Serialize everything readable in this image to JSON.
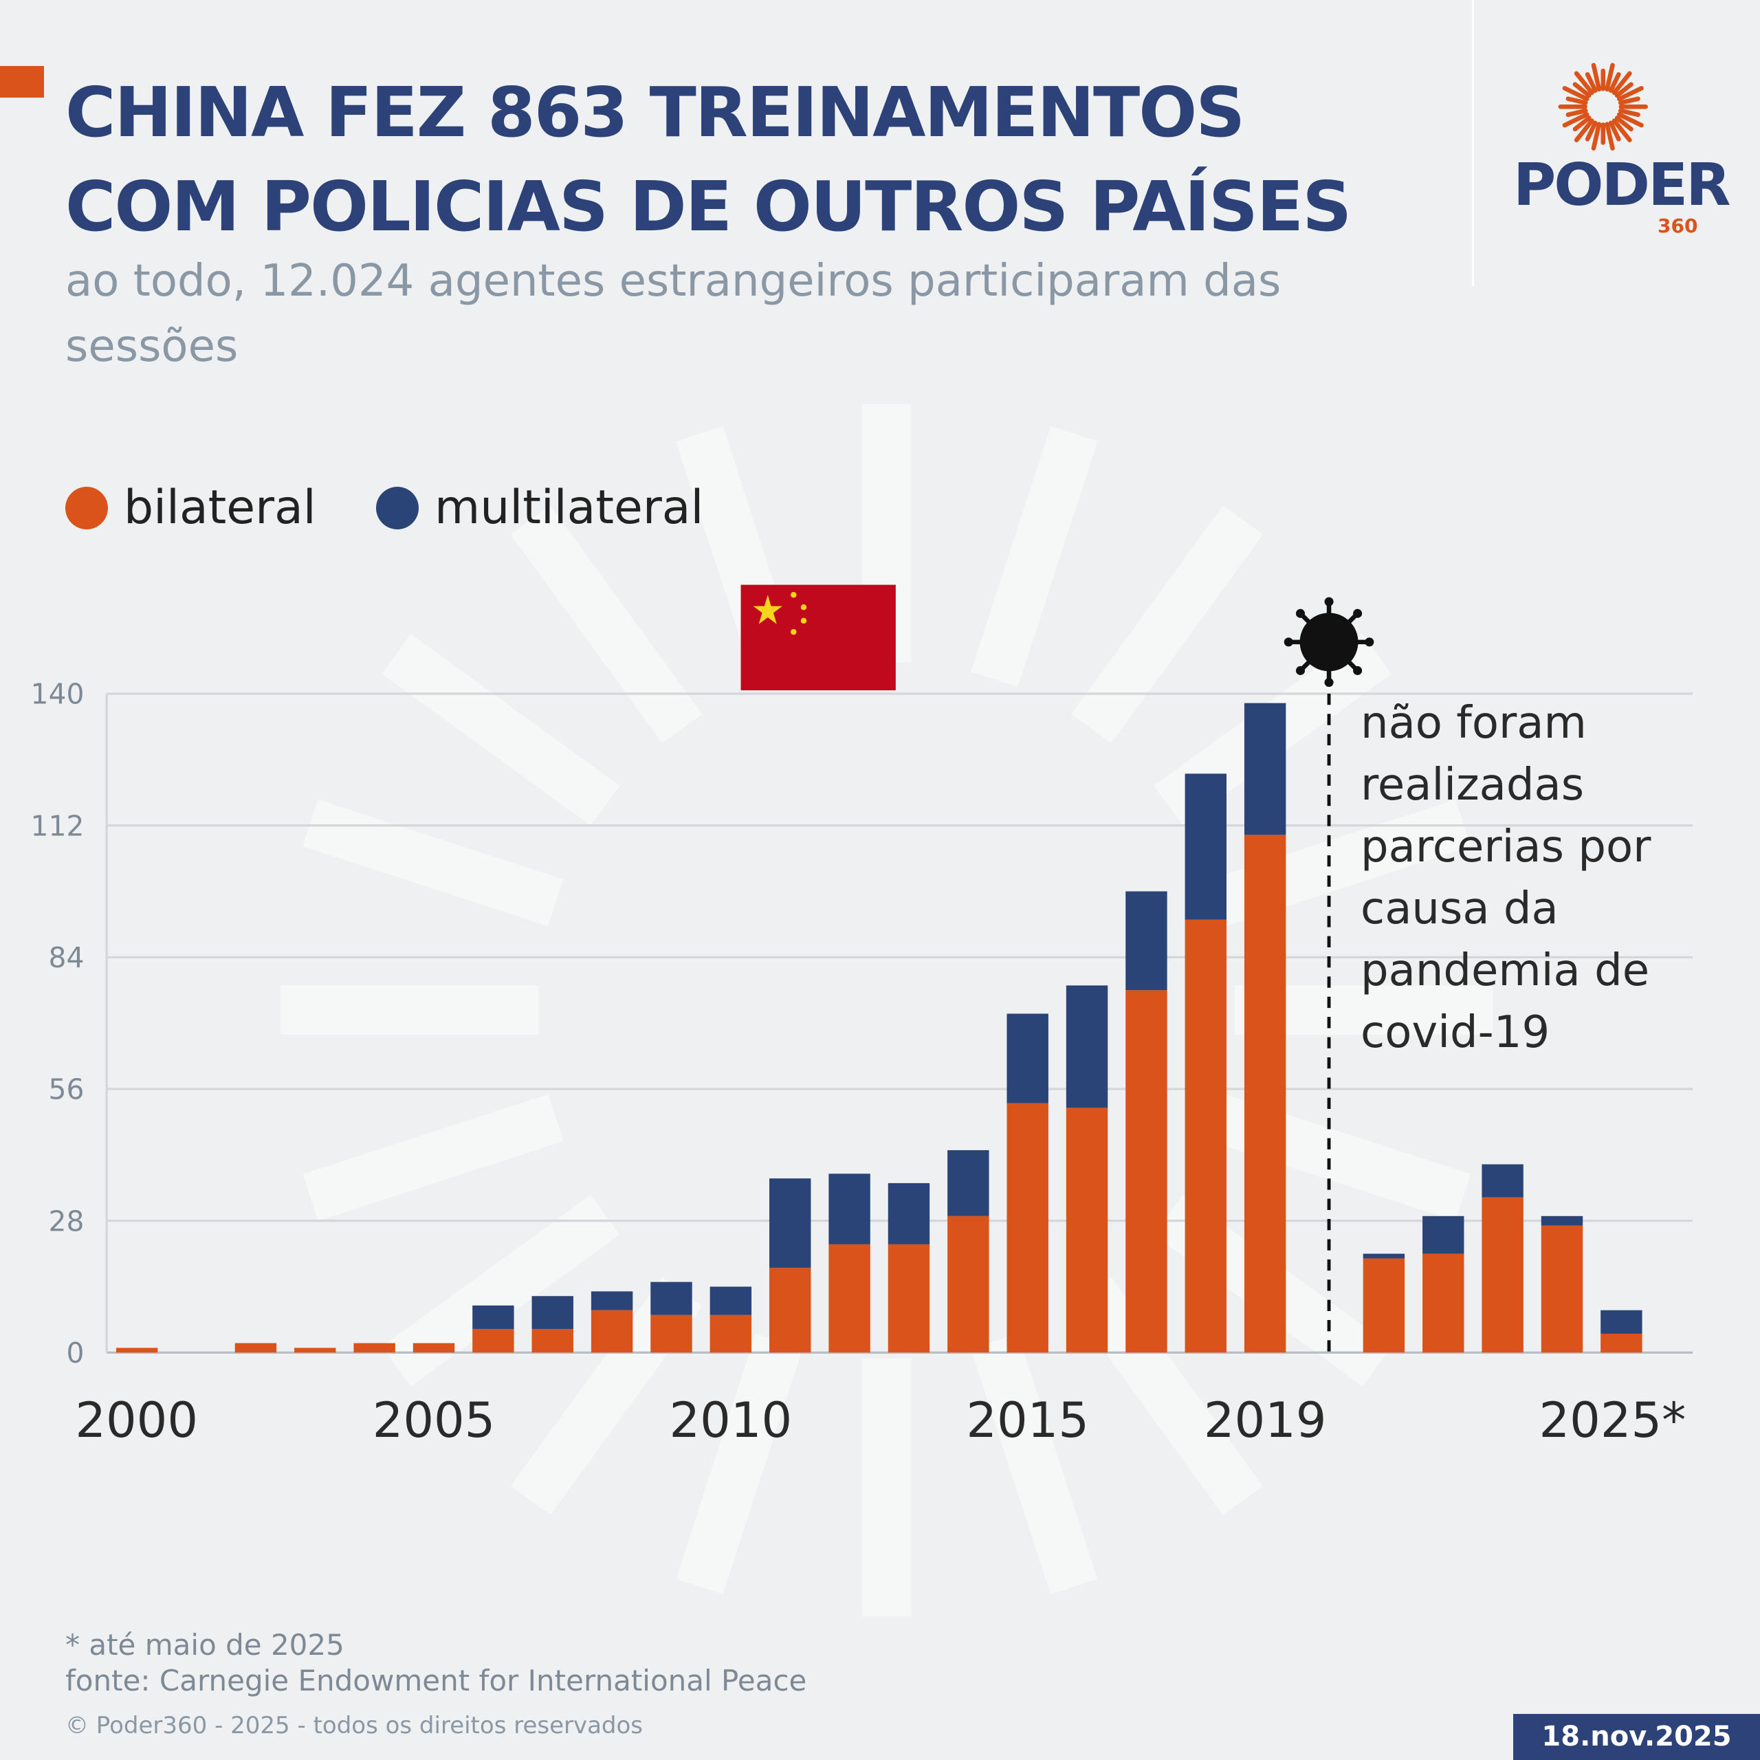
{
  "header": {
    "title_lines": [
      "CHINA FEZ 863 TREINAMENTOS",
      "COM POLICIAS DE OUTROS PAÍSES"
    ],
    "subtitle": "ao todo, 12.024 agentes estrangeiros participaram das sessões"
  },
  "logo": {
    "word": "PODER",
    "number": "360"
  },
  "colors": {
    "bilateral": "#d9531a",
    "multilateral": "#2b4478",
    "title": "#2c4278",
    "background": "#eff0f1"
  },
  "icons": [
    "china-flag",
    "virus-icon",
    "poder360-sun-logo"
  ],
  "chart_data": {
    "type": "bar",
    "stacked": true,
    "categories": [
      2000,
      2001,
      2002,
      2003,
      2004,
      2005,
      2006,
      2007,
      2008,
      2009,
      2010,
      2011,
      2012,
      2013,
      2014,
      2015,
      2016,
      2017,
      2018,
      2019,
      2020,
      2021,
      2022,
      2023,
      2024,
      2025
    ],
    "series": [
      {
        "name": "bilateral",
        "values": [
          1,
          0,
          2,
          1,
          2,
          2,
          5,
          5,
          9,
          8,
          8,
          18,
          23,
          23,
          29,
          53,
          52,
          77,
          92,
          110,
          0,
          20,
          21,
          33,
          27,
          4
        ]
      },
      {
        "name": "multilateral",
        "values": [
          0,
          0,
          0,
          0,
          0,
          0,
          5,
          7,
          4,
          7,
          6,
          19,
          15,
          13,
          14,
          19,
          26,
          21,
          31,
          28,
          0,
          1,
          8,
          7,
          2,
          5
        ]
      }
    ],
    "ylim": [
      0,
      140
    ],
    "yticks": [
      0,
      28,
      56,
      84,
      112,
      140
    ],
    "xtick_labels": [
      {
        "year": 2000,
        "label": "2000"
      },
      {
        "year": 2005,
        "label": "2005"
      },
      {
        "year": 2010,
        "label": "2010"
      },
      {
        "year": 2015,
        "label": "2015"
      },
      {
        "year": 2019,
        "label": "2019"
      },
      {
        "year": 2025,
        "label": "2025*"
      }
    ],
    "grid": "horizontal",
    "legend_placement": "top-left",
    "annotation": {
      "year": 2020,
      "lines": [
        "não foram",
        "realizadas",
        "parcerias por",
        "causa da",
        "pandemia de",
        "covid-19"
      ]
    }
  },
  "footer": {
    "note": "* até maio de 2025",
    "source": "fonte: Carnegie Endowment for International Peace",
    "copyright": "© Poder360 - 2025 - todos os direitos reservados",
    "date": "18.nov.2025"
  }
}
